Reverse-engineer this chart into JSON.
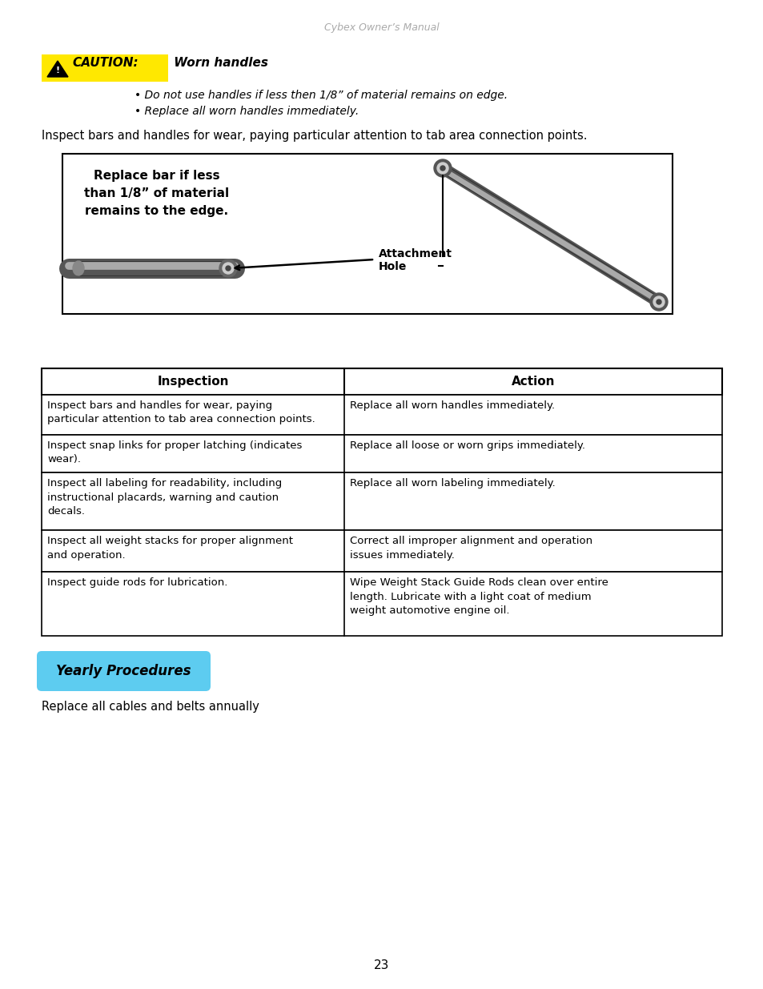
{
  "header_text": "Cybex Owner’s Manual",
  "caution_label": "CAUTION:",
  "caution_title": " Worn handles",
  "caution_bullets": [
    "Do not use handles if less then 1/8” of material remains on edge.",
    "Replace all worn handles immediately."
  ],
  "inspect_intro": "Inspect bars and handles for wear, paying particular attention to tab area connection points.",
  "diagram_text_left": "Replace bar if less\nthan 1/8” of material\nremains to the edge.",
  "attachment_label": "Attachment\nHole",
  "table_headers": [
    "Inspection",
    "Action"
  ],
  "table_rows": [
    [
      "Inspect bars and handles for wear, paying\nparticular attention to tab area connection points.",
      "Replace all worn handles immediately."
    ],
    [
      "Inspect snap links for proper latching (indicates\nwear).",
      "Replace all loose or worn grips immediately."
    ],
    [
      "Inspect all labeling for readability, including\ninstructional placards, warning and caution\ndecals.",
      "Replace all worn labeling immediately."
    ],
    [
      "Inspect all weight stacks for proper alignment\nand operation.",
      "Correct all improper alignment and operation\nissues immediately."
    ],
    [
      "Inspect guide rods for lubrication.",
      "Wipe Weight Stack Guide Rods clean over entire\nlength. Lubricate with a light coat of medium\nweight automotive engine oil."
    ]
  ],
  "yearly_label": "Yearly Procedures",
  "yearly_body": "Replace all cables and belts annually",
  "page_number": "23",
  "caution_bg": "#FFE800",
  "yearly_bg": "#5DCCF0",
  "background": "#FFFFFF",
  "text_color": "#000000",
  "header_color": "#AAAAAA",
  "table_border_color": "#000000"
}
